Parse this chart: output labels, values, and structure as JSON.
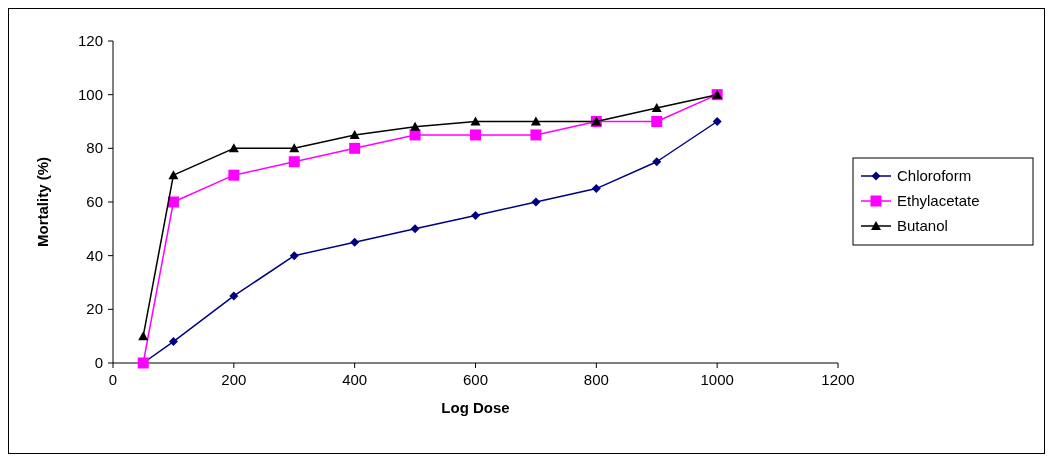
{
  "chart_data": {
    "type": "line",
    "xlabel": "Log Dose",
    "ylabel": "Mortality (%)",
    "x": [
      50,
      100,
      200,
      300,
      400,
      500,
      600,
      700,
      800,
      900,
      1000
    ],
    "series": [
      {
        "name": "Chloroform",
        "color": "#000080",
        "marker": "diamond",
        "values": [
          0,
          8,
          25,
          40,
          45,
          50,
          55,
          60,
          65,
          75,
          90
        ]
      },
      {
        "name": "Ethylacetate",
        "color": "#ff00ff",
        "marker": "square",
        "values": [
          0,
          60,
          70,
          75,
          80,
          85,
          85,
          85,
          90,
          90,
          100
        ]
      },
      {
        "name": "Butanol",
        "color": "#000000",
        "marker": "triangle",
        "values": [
          10,
          70,
          80,
          80,
          85,
          88,
          90,
          90,
          90,
          95,
          100
        ]
      }
    ],
    "xlim": [
      0,
      1200
    ],
    "xticks": [
      0,
      200,
      400,
      600,
      800,
      1000,
      1200
    ],
    "ylim": [
      0,
      120
    ],
    "yticks": [
      0,
      20,
      40,
      60,
      80,
      100,
      120
    ],
    "grid": false,
    "legend": "right",
    "line_style": "solid"
  }
}
